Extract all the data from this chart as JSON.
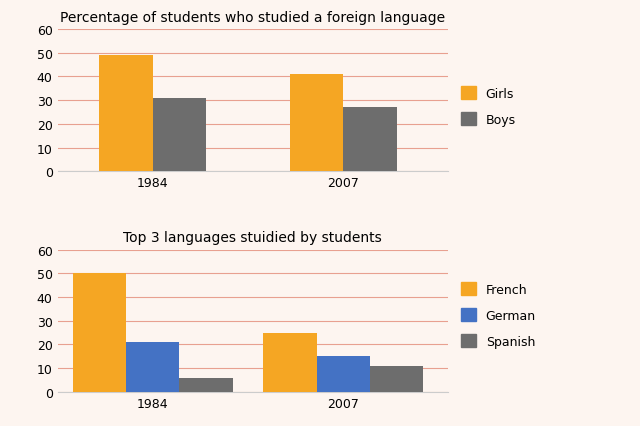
{
  "chart1": {
    "title": "Percentage of students who studied a foreign language",
    "years": [
      "1984",
      "2007"
    ],
    "girls": [
      49,
      41
    ],
    "boys": [
      31,
      27
    ],
    "colors": {
      "girls": "#F5A623",
      "boys": "#6D6D6D"
    },
    "ylim": [
      0,
      60
    ],
    "yticks": [
      0,
      10,
      20,
      30,
      40,
      50,
      60
    ],
    "legend_labels": [
      "Girls",
      "Boys"
    ]
  },
  "chart2": {
    "title": "Top 3 languages stuidied by students",
    "years": [
      "1984",
      "2007"
    ],
    "french": [
      50,
      25
    ],
    "german": [
      21,
      15
    ],
    "spanish": [
      6,
      11
    ],
    "colors": {
      "french": "#F5A623",
      "german": "#4472C4",
      "spanish": "#6D6D6D"
    },
    "ylim": [
      0,
      60
    ],
    "yticks": [
      0,
      10,
      20,
      30,
      40,
      50,
      60
    ],
    "legend_labels": [
      "French",
      "German",
      "Spanish"
    ]
  },
  "background_color": "#FDF5F0",
  "grid_color": "#E8A090",
  "bar_width": 0.28,
  "title_fontsize": 10,
  "tick_fontsize": 9,
  "legend_fontsize": 9
}
